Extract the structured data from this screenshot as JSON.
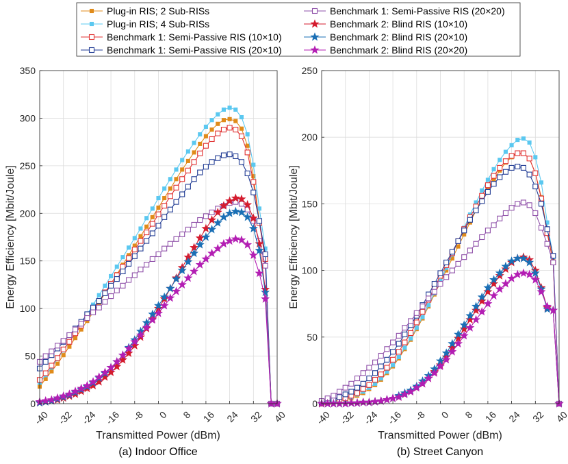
{
  "chart_data": {
    "type": "line",
    "legend": {
      "placement": "top-center",
      "columns": 2,
      "entries": [
        {
          "label": "Plug-in RIS; 2 Sub-RISs",
          "color": "#e08b1a",
          "marker": "square-filled"
        },
        {
          "label": "Plug-in RIS; 4 Sub-RISs",
          "color": "#5bc8f0",
          "marker": "square-filled"
        },
        {
          "label": "Benchmark 1: Semi-Passive RIS (10×10)",
          "color": "#e03131",
          "marker": "square-open"
        },
        {
          "label": "Benchmark 1: Semi-Passive RIS (20×10)",
          "color": "#1f3a93",
          "marker": "square-open"
        },
        {
          "label": "Benchmark 1: Semi-Passive RIS (20×20)",
          "color": "#8e4fa8",
          "marker": "square-open"
        },
        {
          "label": "Benchmark 2: Blind RIS (10×10)",
          "color": "#d41b2e",
          "marker": "star"
        },
        {
          "label": "Benchmark 2: Blind RIS (20×10)",
          "color": "#1a6fb5",
          "marker": "star"
        },
        {
          "label": "Benchmark 2: Blind RIS (20×20)",
          "color": "#b31eb3",
          "marker": "star"
        }
      ]
    },
    "x_values": [
      -40,
      -38,
      -36,
      -34,
      -32,
      -30,
      -28,
      -26,
      -24,
      -22,
      -20,
      -18,
      -16,
      -14,
      -12,
      -10,
      -8,
      -6,
      -4,
      -2,
      0,
      2,
      4,
      6,
      8,
      10,
      12,
      14,
      16,
      18,
      20,
      22,
      24,
      26,
      28,
      30,
      32,
      34,
      36,
      38,
      40
    ],
    "plots": [
      {
        "caption": "(a) Indoor Office",
        "xlabel": "Transmitted Power (dBm)",
        "ylabel": "Energy Efficiency [Mbit/Joule]",
        "xlim": [
          -40,
          40
        ],
        "ylim": [
          0,
          350
        ],
        "xticks": [
          -40,
          -32,
          -24,
          -16,
          -8,
          0,
          8,
          16,
          24,
          32,
          40
        ],
        "yticks": [
          0,
          50,
          100,
          150,
          200,
          250,
          300,
          350
        ],
        "grid": true,
        "series": [
          {
            "name": "Plug-in RIS; 2 Sub-RISs",
            "values": [
              18.0,
              26.0,
              34.0,
              42.0,
              51.0,
              60.0,
              69.0,
              78.0,
              87.0,
              96.0,
              106.0,
              116.0,
              126.0,
              136.0,
              146.0,
              156.0,
              166.0,
              176.0,
              186.0,
              196.0,
              206.0,
              216.0,
              226.0,
              236.0,
              246.0,
              255.0,
              264.0,
              273.0,
              281.0,
              288.0,
              294.0,
              298.0,
              299.0,
              297.0,
              289.0,
              271.0,
              239.0,
              192.0,
              155.0,
              0.0,
              0.0
            ]
          },
          {
            "name": "Plug-in RIS; 4 Sub-RISs",
            "values": [
              22.0,
              30.0,
              38.0,
              47.0,
              56.0,
              65.0,
              74.0,
              84.0,
              94.0,
              104.0,
              114.0,
              124.0,
              134.0,
              144.0,
              154.0,
              164.0,
              174.0,
              184.0,
              195.0,
              205.0,
              216.0,
              226.0,
              236.0,
              246.0,
              256.0,
              265.0,
              274.0,
              283.0,
              291.0,
              298.0,
              304.0,
              309.0,
              311.0,
              309.0,
              301.0,
              283.0,
              251.0,
              205.0,
              163.0,
              0.0,
              0.0
            ]
          },
          {
            "name": "Benchmark 1: Semi-Passive RIS (10×10)",
            "values": [
              25.0,
              32.0,
              40.0,
              48.0,
              57.0,
              65.0,
              74.0,
              82.0,
              91.0,
              99.0,
              108.0,
              117.0,
              126.0,
              135.0,
              144.0,
              153.0,
              162.0,
              171.0,
              180.0,
              189.0,
              199.0,
              208.0,
              218.0,
              227.0,
              236.0,
              245.0,
              254.0,
              263.0,
              271.0,
              278.0,
              284.0,
              288.0,
              290.0,
              288.0,
              281.0,
              264.0,
              233.0,
              190.0,
              152.0,
              0.0,
              0.0
            ]
          },
          {
            "name": "Benchmark 1: Semi-Passive RIS (20×10)",
            "values": [
              37.0,
              44.0,
              51.0,
              58.0,
              65.0,
              72.0,
              79.0,
              86.0,
              94.0,
              101.0,
              108.0,
              116.0,
              124.0,
              131.0,
              139.0,
              147.0,
              155.0,
              163.0,
              171.0,
              179.0,
              187.0,
              196.0,
              204.0,
              212.0,
              220.0,
              228.0,
              236.0,
              243.0,
              249.0,
              254.0,
              258.0,
              261.0,
              262.0,
              260.0,
              254.0,
              242.0,
              222.0,
              192.0,
              157.0,
              0.0,
              0.0
            ]
          },
          {
            "name": "Benchmark 1: Semi-Passive RIS (20×20)",
            "values": [
              44.0,
              50.0,
              55.0,
              61.0,
              66.0,
              72.0,
              78.0,
              84.0,
              90.0,
              96.0,
              101.0,
              107.0,
              113.0,
              119.0,
              124.0,
              130.0,
              135.0,
              141.0,
              146.0,
              152.0,
              157.0,
              163.0,
              168.0,
              173.0,
              178.0,
              183.0,
              188.0,
              193.0,
              197.0,
              201.0,
              205.0,
              208.0,
              211.0,
              212.0,
              210.0,
              204.0,
              192.0,
              171.0,
              145.0,
              0.0,
              0.0
            ]
          },
          {
            "name": "Benchmark 2: Blind RIS (10×10)",
            "values": [
              1.0,
              2.0,
              3.0,
              4.0,
              6.0,
              8.0,
              10.0,
              13.0,
              16.0,
              19.0,
              23.0,
              28.0,
              33.0,
              39.0,
              46.0,
              53.0,
              61.0,
              70.0,
              79.0,
              89.0,
              100.0,
              110.0,
              121.0,
              132.0,
              143.0,
              154.0,
              164.0,
              174.0,
              184.0,
              193.0,
              201.0,
              208.0,
              213.0,
              216.0,
              215.0,
              209.0,
              195.0,
              168.0,
              120.0,
              0.0,
              0.0
            ]
          },
          {
            "name": "Benchmark 2: Blind RIS (20×10)",
            "values": [
              1.0,
              2.0,
              3.0,
              5.0,
              7.0,
              9.0,
              12.0,
              15.0,
              18.0,
              22.0,
              27.0,
              32.0,
              38.0,
              44.0,
              51.0,
              59.0,
              67.0,
              76.0,
              85.0,
              94.0,
              103.0,
              112.0,
              121.0,
              131.0,
              140.0,
              149.0,
              158.0,
              167.0,
              175.0,
              183.0,
              190.0,
              196.0,
              200.0,
              202.0,
              201.0,
              196.0,
              184.0,
              161.0,
              117.0,
              0.0,
              0.0
            ]
          },
          {
            "name": "Benchmark 2: Blind RIS (20×20)",
            "values": [
              2.0,
              3.0,
              4.0,
              6.0,
              8.0,
              10.0,
              13.0,
              16.0,
              19.0,
              23.0,
              28.0,
              33.0,
              38.0,
              44.0,
              51.0,
              58.0,
              65.0,
              72.0,
              80.0,
              88.0,
              95.0,
              103.0,
              111.0,
              118.0,
              125.0,
              132.0,
              139.0,
              146.0,
              152.0,
              158.0,
              163.0,
              168.0,
              171.0,
              173.0,
              172.0,
              167.0,
              156.0,
              137.0,
              110.0,
              0.0,
              0.0
            ]
          }
        ]
      },
      {
        "caption": "(b) Street Canyon",
        "xlabel": "Transmitted Power (dBm)",
        "ylabel": "Energy Efficiency [Mbit/Joule]",
        "xlim": [
          -40,
          40
        ],
        "ylim": [
          0,
          250
        ],
        "xticks": [
          -40,
          -32,
          -24,
          -16,
          -8,
          0,
          8,
          16,
          24,
          32,
          40
        ],
        "yticks": [
          0,
          50,
          100,
          150,
          200,
          250
        ],
        "grid": true,
        "series": [
          {
            "name": "Plug-in RIS; 2 Sub-RISs",
            "values": [
              0.0,
              0.5,
              1.0,
              2.0,
              3.0,
              4.0,
              6.0,
              8.0,
              11.0,
              14.0,
              18.0,
              23.0,
              28.0,
              34.0,
              41.0,
              48.0,
              56.0,
              64.0,
              73.0,
              82.0,
              91.0,
              100.0,
              109.0,
              118.0,
              127.0,
              136.0,
              145.0,
              153.0,
              161.0,
              168.0,
              175.0,
              181.0,
              185.0,
              188.0,
              188.0,
              184.0,
              173.0,
              155.0,
              129.0,
              107.0,
              0.0
            ]
          },
          {
            "name": "Plug-in RIS; 4 Sub-RISs",
            "values": [
              0.0,
              0.5,
              1.0,
              2.0,
              3.0,
              5.0,
              7.0,
              9.0,
              12.0,
              15.0,
              19.0,
              24.0,
              29.0,
              35.0,
              42.0,
              49.0,
              57.0,
              65.0,
              74.0,
              83.0,
              92.0,
              102.0,
              112.0,
              122.0,
              132.0,
              142.0,
              151.0,
              160.0,
              168.0,
              176.0,
              183.0,
              189.0,
              194.0,
              198.0,
              199.0,
              196.0,
              185.0,
              166.0,
              136.0,
              110.0,
              0.0
            ]
          },
          {
            "name": "Benchmark 1: Semi-Passive RIS (10×10)",
            "values": [
              0.0,
              1.0,
              2.0,
              3.0,
              4.0,
              6.0,
              8.0,
              11.0,
              14.0,
              18.0,
              22.0,
              27.0,
              33.0,
              39.0,
              46.0,
              53.0,
              61.0,
              69.0,
              78.0,
              87.0,
              96.0,
              104.0,
              113.0,
              122.0,
              131.0,
              140.0,
              148.0,
              156.0,
              164.0,
              171.0,
              177.0,
              182.0,
              186.0,
              188.0,
              188.0,
              184.0,
              173.0,
              154.0,
              128.0,
              106.0,
              0.0
            ]
          },
          {
            "name": "Benchmark 1: Semi-Passive RIS (20×10)",
            "values": [
              1.0,
              2.0,
              3.0,
              5.0,
              7.0,
              9.0,
              12.0,
              15.0,
              19.0,
              23.0,
              28.0,
              33.0,
              39.0,
              45.0,
              52.0,
              59.0,
              66.0,
              74.0,
              82.0,
              90.0,
              98.0,
              106.0,
              114.0,
              122.0,
              130.0,
              138.0,
              145.0,
              152.0,
              159.0,
              165.0,
              170.0,
              174.0,
              177.0,
              178.0,
              177.0,
              172.0,
              163.0,
              150.0,
              131.0,
              111.0,
              0.0
            ]
          },
          {
            "name": "Benchmark 1: Semi-Passive RIS (20×20)",
            "values": [
              2.0,
              4.0,
              6.0,
              9.0,
              12.0,
              15.0,
              19.0,
              23.0,
              27.0,
              31.0,
              36.0,
              41.0,
              46.0,
              51.0,
              57.0,
              62.0,
              68.0,
              73.0,
              79.0,
              84.0,
              90.0,
              95.0,
              100.0,
              105.0,
              110.0,
              115.0,
              120.0,
              125.0,
              130.0,
              134.0,
              139.0,
              143.0,
              147.0,
              150.0,
              151.0,
              149.0,
              143.0,
              132.0,
              120.0,
              106.0,
              0.0
            ]
          },
          {
            "name": "Benchmark 2: Blind RIS (10×10)",
            "values": [
              0.0,
              0.0,
              0.0,
              0.0,
              0.0,
              0.5,
              0.5,
              1.0,
              1.0,
              1.5,
              2.0,
              3.0,
              4.0,
              5.0,
              7.0,
              9.0,
              12.0,
              15.0,
              19.0,
              24.0,
              29.0,
              35.0,
              42.0,
              49.0,
              56.0,
              63.0,
              70.0,
              77.0,
              84.0,
              90.0,
              96.0,
              101.0,
              106.0,
              109.0,
              110.0,
              108.0,
              100.0,
              87.0,
              72.0,
              70.0,
              0.0
            ]
          },
          {
            "name": "Benchmark 2: Blind RIS (20×10)",
            "values": [
              0.0,
              0.0,
              0.0,
              0.0,
              0.0,
              0.5,
              0.5,
              1.0,
              1.0,
              1.5,
              2.0,
              3.0,
              4.0,
              6.0,
              8.0,
              10.0,
              13.0,
              17.0,
              21.0,
              26.0,
              32.0,
              38.0,
              45.0,
              52.0,
              59.0,
              66.0,
              73.0,
              80.0,
              87.0,
              93.0,
              98.0,
              103.0,
              107.0,
              109.0,
              109.0,
              106.0,
              98.0,
              86.0,
              71.0,
              70.0,
              0.0
            ]
          },
          {
            "name": "Benchmark 2: Blind RIS (20×20)",
            "values": [
              0.0,
              0.0,
              0.0,
              0.0,
              0.0,
              0.5,
              0.5,
              1.0,
              1.0,
              1.5,
              2.0,
              3.0,
              4.0,
              5.0,
              7.0,
              9.0,
              12.0,
              15.0,
              19.0,
              23.0,
              28.0,
              33.0,
              39.0,
              45.0,
              51.0,
              57.0,
              63.0,
              69.0,
              75.0,
              81.0,
              86.0,
              90.0,
              94.0,
              97.0,
              98.0,
              97.0,
              93.0,
              84.0,
              73.0,
              70.0,
              0.0
            ]
          }
        ]
      }
    ]
  }
}
